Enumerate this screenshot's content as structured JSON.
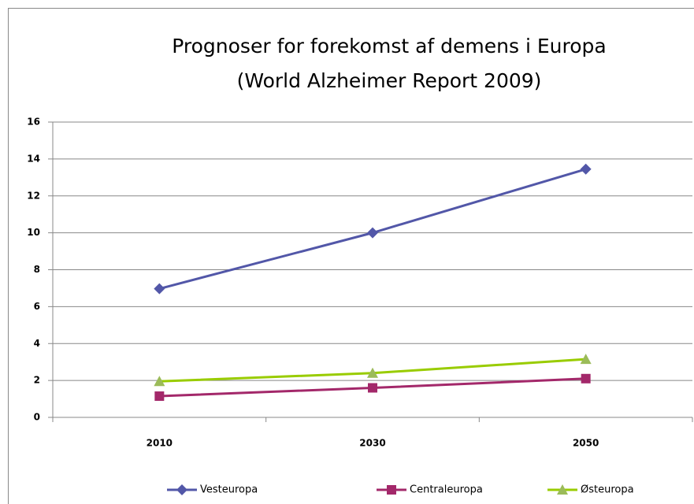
{
  "chart_data": {
    "type": "line",
    "title": "Prognoser for forekomst af demens i Europa",
    "subtitle": "(World Alzheimer Report 2009)",
    "categories": [
      "2010",
      "2030",
      "2050"
    ],
    "series": [
      {
        "name": "Vesteuropa",
        "color": "#5257a8",
        "marker": "diamond",
        "values": [
          6.97,
          10.0,
          13.45
        ]
      },
      {
        "name": "Centraleuropa",
        "color": "#a3286a",
        "marker": "square",
        "values": [
          1.15,
          1.6,
          2.1
        ]
      },
      {
        "name": "Østeuropa",
        "color": "#99cc00",
        "marker": "triangle",
        "values": [
          1.95,
          2.4,
          3.15
        ]
      }
    ],
    "ylim": [
      0,
      16
    ],
    "yticks": [
      0,
      2,
      4,
      6,
      8,
      10,
      12,
      14,
      16
    ],
    "grid": true,
    "legend": "bottom"
  }
}
